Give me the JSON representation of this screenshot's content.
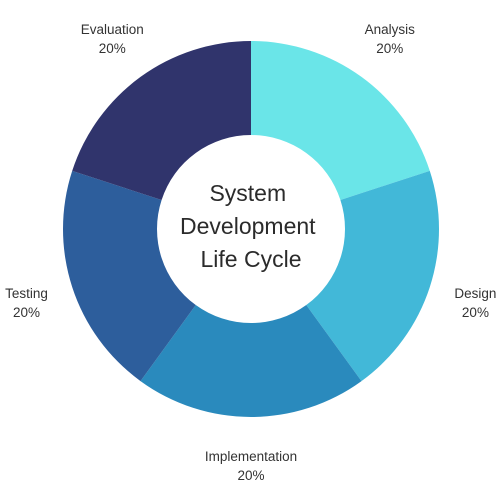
{
  "chart_data": {
    "type": "pie",
    "donut": true,
    "center_title": [
      "System",
      "Development",
      "Life Cycle"
    ],
    "slices": [
      {
        "label": "Analysis",
        "value": 20,
        "value_label": "20%",
        "color": "#6AE5E8"
      },
      {
        "label": "Design",
        "value": 20,
        "value_label": "20%",
        "color": "#42B8D8"
      },
      {
        "label": "Implementation",
        "value": 20,
        "value_label": "20%",
        "color": "#2A8ABD"
      },
      {
        "label": "Testing",
        "value": 20,
        "value_label": "20%",
        "color": "#2D5E9C"
      },
      {
        "label": "Evaluation",
        "value": 20,
        "value_label": "20%",
        "color": "#30346C"
      }
    ],
    "legend": "none",
    "label_placement": "outside"
  }
}
